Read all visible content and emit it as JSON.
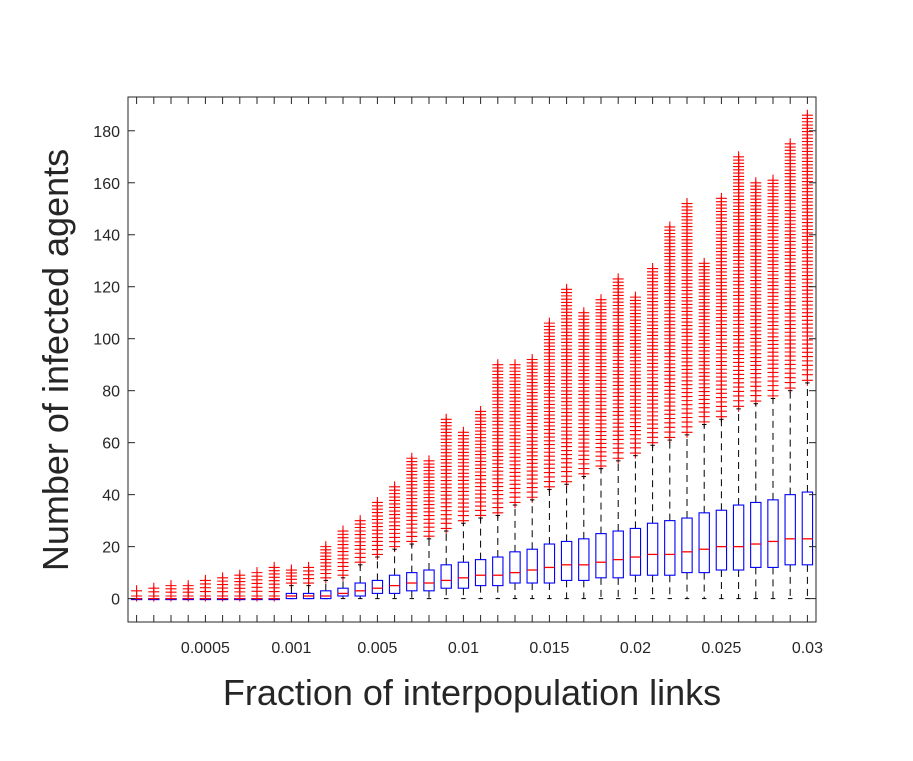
{
  "chart_data": {
    "type": "boxplot",
    "xlabel": "Fraction of interpopulation links",
    "ylabel": "Number of infected agents",
    "ylim": [
      -9,
      193
    ],
    "y_ticks": [
      0,
      20,
      40,
      60,
      80,
      100,
      120,
      140,
      160,
      180
    ],
    "x_tick_labels": [
      {
        "group_index": 4,
        "label": "0.0005"
      },
      {
        "group_index": 9,
        "label": "0.001"
      },
      {
        "group_index": 14,
        "label": "0.005"
      },
      {
        "group_index": 19,
        "label": "0.01"
      },
      {
        "group_index": 24,
        "label": "0.015"
      },
      {
        "group_index": 29,
        "label": "0.02"
      },
      {
        "group_index": 34,
        "label": "0.025"
      },
      {
        "group_index": 39,
        "label": "0.03"
      }
    ],
    "grid": false,
    "colors": {
      "box": "#0000ff",
      "median": "#ff0000",
      "whisker": "#000000",
      "outlier": "#ff0000",
      "axis": "#262626"
    },
    "series": [
      {
        "q1": 0,
        "median": 0,
        "q3": 0,
        "whisker_low": 0,
        "whisker_high": 0,
        "outlier_min": 1,
        "outlier_max": 3
      },
      {
        "q1": 0,
        "median": 0,
        "q3": 0,
        "whisker_low": 0,
        "whisker_high": 0,
        "outlier_min": 1,
        "outlier_max": 4
      },
      {
        "q1": 0,
        "median": 0,
        "q3": 0,
        "whisker_low": 0,
        "whisker_high": 0,
        "outlier_min": 1,
        "outlier_max": 5
      },
      {
        "q1": 0,
        "median": 0,
        "q3": 0,
        "whisker_low": 0,
        "whisker_high": 0,
        "outlier_min": 1,
        "outlier_max": 5
      },
      {
        "q1": 0,
        "median": 0,
        "q3": 0,
        "whisker_low": 0,
        "whisker_high": 0,
        "outlier_min": 1,
        "outlier_max": 7
      },
      {
        "q1": 0,
        "median": 0,
        "q3": 0,
        "whisker_low": 0,
        "whisker_high": 0,
        "outlier_min": 1,
        "outlier_max": 8
      },
      {
        "q1": 0,
        "median": 0,
        "q3": 0,
        "whisker_low": 0,
        "whisker_high": 0,
        "outlier_min": 1,
        "outlier_max": 9
      },
      {
        "q1": 0,
        "median": 0,
        "q3": 0,
        "whisker_low": 0,
        "whisker_high": 0,
        "outlier_min": 1,
        "outlier_max": 10
      },
      {
        "q1": 0,
        "median": 0,
        "q3": 0,
        "whisker_low": 0,
        "whisker_high": 0,
        "outlier_min": 1,
        "outlier_max": 12
      },
      {
        "q1": 0,
        "median": 1,
        "q3": 2,
        "whisker_low": 0,
        "whisker_high": 5,
        "outlier_min": 6,
        "outlier_max": 11
      },
      {
        "q1": 0,
        "median": 1,
        "q3": 2,
        "whisker_low": 0,
        "whisker_high": 5,
        "outlier_min": 6,
        "outlier_max": 12
      },
      {
        "q1": 0,
        "median": 1,
        "q3": 3,
        "whisker_low": 0,
        "whisker_high": 7,
        "outlier_min": 8,
        "outlier_max": 20
      },
      {
        "q1": 1,
        "median": 2,
        "q3": 4,
        "whisker_low": 0,
        "whisker_high": 8,
        "outlier_min": 9,
        "outlier_max": 26
      },
      {
        "q1": 1,
        "median": 3,
        "q3": 6,
        "whisker_low": 0,
        "whisker_high": 13,
        "outlier_min": 14,
        "outlier_max": 30
      },
      {
        "q1": 2,
        "median": 4,
        "q3": 7,
        "whisker_low": 0,
        "whisker_high": 16,
        "outlier_min": 17,
        "outlier_max": 37
      },
      {
        "q1": 2,
        "median": 5,
        "q3": 9,
        "whisker_low": 0,
        "whisker_high": 19,
        "outlier_min": 20,
        "outlier_max": 43
      },
      {
        "q1": 3,
        "median": 6,
        "q3": 10,
        "whisker_low": 0,
        "whisker_high": 21,
        "outlier_min": 22,
        "outlier_max": 54
      },
      {
        "q1": 3,
        "median": 6,
        "q3": 11,
        "whisker_low": 0,
        "whisker_high": 23,
        "outlier_min": 24,
        "outlier_max": 53
      },
      {
        "q1": 4,
        "median": 7,
        "q3": 13,
        "whisker_low": 0,
        "whisker_high": 26,
        "outlier_min": 27,
        "outlier_max": 69
      },
      {
        "q1": 4,
        "median": 8,
        "q3": 14,
        "whisker_low": 0,
        "whisker_high": 29,
        "outlier_min": 30,
        "outlier_max": 64
      },
      {
        "q1": 5,
        "median": 9,
        "q3": 15,
        "whisker_low": 0,
        "whisker_high": 31,
        "outlier_min": 32,
        "outlier_max": 72
      },
      {
        "q1": 5,
        "median": 9,
        "q3": 16,
        "whisker_low": 0,
        "whisker_high": 32,
        "outlier_min": 33,
        "outlier_max": 90
      },
      {
        "q1": 6,
        "median": 10,
        "q3": 18,
        "whisker_low": 0,
        "whisker_high": 36,
        "outlier_min": 37,
        "outlier_max": 90
      },
      {
        "q1": 6,
        "median": 11,
        "q3": 19,
        "whisker_low": 0,
        "whisker_high": 38,
        "outlier_min": 39,
        "outlier_max": 92
      },
      {
        "q1": 6,
        "median": 12,
        "q3": 21,
        "whisker_low": 0,
        "whisker_high": 42,
        "outlier_min": 43,
        "outlier_max": 106
      },
      {
        "q1": 7,
        "median": 13,
        "q3": 22,
        "whisker_low": 0,
        "whisker_high": 44,
        "outlier_min": 45,
        "outlier_max": 119
      },
      {
        "q1": 7,
        "median": 13,
        "q3": 23,
        "whisker_low": 0,
        "whisker_high": 47,
        "outlier_min": 48,
        "outlier_max": 110
      },
      {
        "q1": 8,
        "median": 14,
        "q3": 25,
        "whisker_low": 0,
        "whisker_high": 50,
        "outlier_min": 51,
        "outlier_max": 115
      },
      {
        "q1": 8,
        "median": 15,
        "q3": 26,
        "whisker_low": 0,
        "whisker_high": 53,
        "outlier_min": 54,
        "outlier_max": 123
      },
      {
        "q1": 9,
        "median": 16,
        "q3": 27,
        "whisker_low": 0,
        "whisker_high": 55,
        "outlier_min": 56,
        "outlier_max": 116
      },
      {
        "q1": 9,
        "median": 17,
        "q3": 29,
        "whisker_low": 0,
        "whisker_high": 59,
        "outlier_min": 60,
        "outlier_max": 127
      },
      {
        "q1": 9,
        "median": 17,
        "q3": 30,
        "whisker_low": 0,
        "whisker_high": 61,
        "outlier_min": 62,
        "outlier_max": 143
      },
      {
        "q1": 10,
        "median": 18,
        "q3": 31,
        "whisker_low": 0,
        "whisker_high": 63,
        "outlier_min": 64,
        "outlier_max": 152
      },
      {
        "q1": 10,
        "median": 19,
        "q3": 33,
        "whisker_low": 0,
        "whisker_high": 67,
        "outlier_min": 68,
        "outlier_max": 129
      },
      {
        "q1": 11,
        "median": 20,
        "q3": 34,
        "whisker_low": 0,
        "whisker_high": 69,
        "outlier_min": 70,
        "outlier_max": 154
      },
      {
        "q1": 11,
        "median": 20,
        "q3": 36,
        "whisker_low": 0,
        "whisker_high": 73,
        "outlier_min": 74,
        "outlier_max": 170
      },
      {
        "q1": 12,
        "median": 21,
        "q3": 37,
        "whisker_low": 0,
        "whisker_high": 75,
        "outlier_min": 76,
        "outlier_max": 160
      },
      {
        "q1": 12,
        "median": 22,
        "q3": 38,
        "whisker_low": 0,
        "whisker_high": 77,
        "outlier_min": 78,
        "outlier_max": 161
      },
      {
        "q1": 13,
        "median": 23,
        "q3": 40,
        "whisker_low": 0,
        "whisker_high": 80,
        "outlier_min": 81,
        "outlier_max": 175
      },
      {
        "q1": 13,
        "median": 23,
        "q3": 41,
        "whisker_low": 0,
        "whisker_high": 83,
        "outlier_min": 84,
        "outlier_max": 186
      }
    ]
  }
}
